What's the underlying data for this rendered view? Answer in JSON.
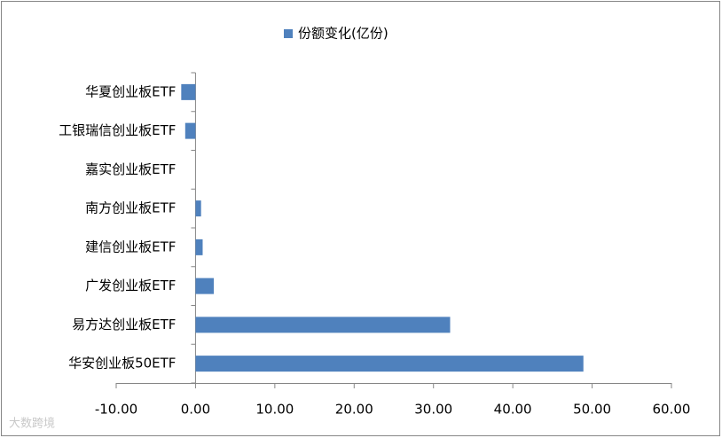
{
  "chart_data": {
    "type": "barh",
    "legend": "份额变化(亿份)",
    "categories": [
      "华夏创业板ETF",
      "工银瑞信创业板ETF",
      "嘉实创业板ETF",
      "南方创业板ETF",
      "建信创业板ETF",
      "广发创业板ETF",
      "易方达创业板ETF",
      "华安创业板50ETF"
    ],
    "values": [
      -1.8,
      -1.3,
      0,
      0.7,
      0.9,
      2.3,
      32.1,
      48.9
    ],
    "color": "#4f81bd",
    "xlim": [
      -10,
      60
    ],
    "xticks": [
      {
        "value": -10,
        "label": "-10.00"
      },
      {
        "value": 0,
        "label": "0.00"
      },
      {
        "value": 10,
        "label": "10.00"
      },
      {
        "value": 20,
        "label": "20.00"
      },
      {
        "value": 30,
        "label": "30.00"
      },
      {
        "value": 40,
        "label": "40.00"
      },
      {
        "value": 50,
        "label": "50.00"
      },
      {
        "value": 60,
        "label": "60.00"
      }
    ],
    "grid": false,
    "legend_position": "top",
    "watermark": "大数跨境"
  }
}
